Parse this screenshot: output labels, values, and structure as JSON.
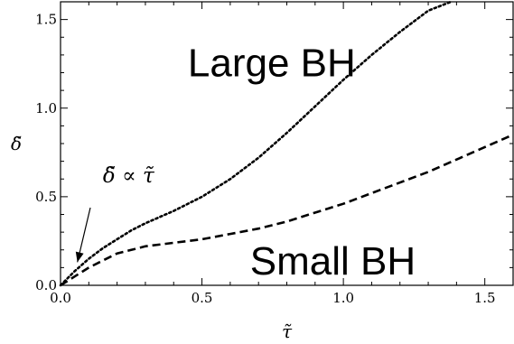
{
  "chart_data": {
    "type": "line",
    "xlabel": "τ̃",
    "ylabel": "δ̃",
    "xlim": [
      0,
      1.6
    ],
    "ylim": [
      0,
      1.6
    ],
    "x_ticks": [
      0.0,
      0.5,
      1.0,
      1.5
    ],
    "y_ticks": [
      0.0,
      0.5,
      1.0,
      1.5
    ],
    "x_tick_labels": [
      "0.0",
      "0.5",
      "1.0",
      "1.5"
    ],
    "y_tick_labels": [
      "0.0",
      "0.5",
      "1.0",
      "1.5"
    ],
    "grid": false,
    "series": [
      {
        "style": "dotted",
        "color": "#000000",
        "x": [
          0,
          0.05,
          0.1,
          0.15,
          0.2,
          0.25,
          0.3,
          0.4,
          0.5,
          0.6,
          0.7,
          0.8,
          0.9,
          1.0,
          1.1,
          1.2,
          1.3,
          1.38
        ],
        "y": [
          0,
          0.08,
          0.15,
          0.21,
          0.26,
          0.31,
          0.35,
          0.42,
          0.5,
          0.6,
          0.72,
          0.86,
          1.01,
          1.16,
          1.3,
          1.43,
          1.55,
          1.6
        ]
      },
      {
        "style": "dashed",
        "color": "#000000",
        "x": [
          0,
          0.05,
          0.1,
          0.15,
          0.2,
          0.25,
          0.3,
          0.4,
          0.5,
          0.6,
          0.7,
          0.8,
          0.9,
          1.0,
          1.1,
          1.2,
          1.3,
          1.4,
          1.5,
          1.6
        ],
        "y": [
          0,
          0.05,
          0.1,
          0.14,
          0.18,
          0.2,
          0.22,
          0.24,
          0.26,
          0.29,
          0.32,
          0.36,
          0.41,
          0.46,
          0.52,
          0.58,
          0.64,
          0.71,
          0.78,
          0.85
        ]
      }
    ],
    "annotations": [
      {
        "text": "Large BH",
        "x": 0.45,
        "y": 1.18
      },
      {
        "text": "Small BH",
        "x": 0.67,
        "y": 0.06
      },
      {
        "text": "δ̃ ∝ τ̃",
        "x": 0.07,
        "y": 0.58,
        "arrow_to": [
          0.05,
          0.1
        ]
      }
    ]
  }
}
